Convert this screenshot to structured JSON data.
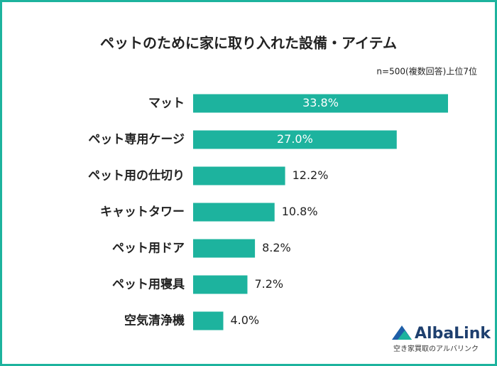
{
  "chart_data": {
    "type": "barh",
    "title": "ペットのために家に取り入れた設備・アイテム",
    "subtitle": "n=500(複数回答)上位7位",
    "categories": [
      "マット",
      "ペット専用ケージ",
      "ペット用の仕切り",
      "キャットタワー",
      "ペット用ドア",
      "ペット用寝具",
      "空気清浄機"
    ],
    "values": [
      33.8,
      27.0,
      12.2,
      10.8,
      8.2,
      7.2,
      4.0
    ],
    "value_labels": [
      "33.8%",
      "27.0%",
      "12.2%",
      "10.8%",
      "8.2%",
      "7.2%",
      "4.0%"
    ],
    "color": "#1db39e"
  },
  "logo": {
    "name": "AlbaLink",
    "tagline": "空き家買取のアルバリンク"
  }
}
